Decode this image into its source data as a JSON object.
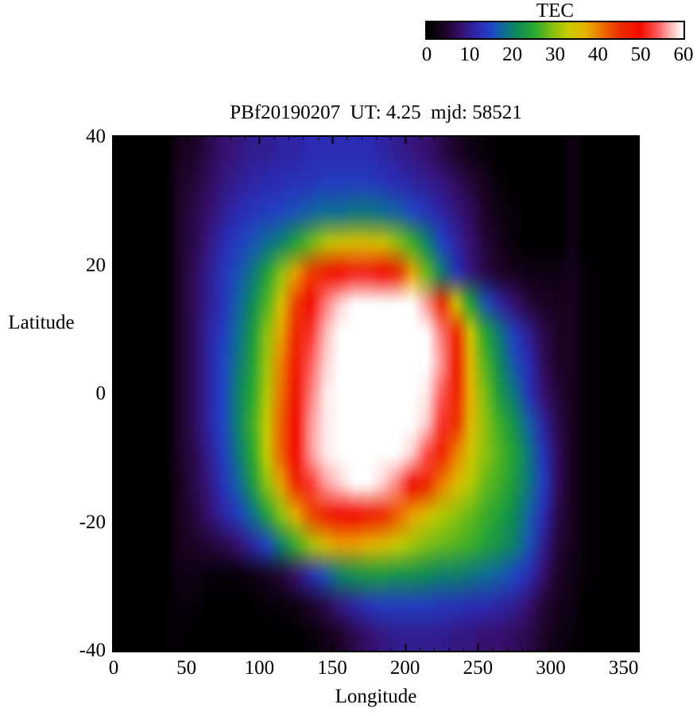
{
  "chart_data": {
    "type": "heatmap",
    "title": "PBf20190207  UT: 4.25  mjd: 58521",
    "xlabel": "Longitude",
    "ylabel": "Latitude",
    "colorbar_label": "TEC",
    "vmin": 0,
    "vmax": 60,
    "xlim": [
      0,
      360
    ],
    "ylim": [
      -40,
      40
    ],
    "xticks": [
      0,
      50,
      100,
      150,
      200,
      250,
      300,
      350
    ],
    "yticks": [
      40,
      20,
      0,
      -20,
      -40
    ],
    "colorbar_ticks": [
      0,
      10,
      20,
      30,
      40,
      50,
      60
    ],
    "lons": [
      0,
      10,
      20,
      30,
      40,
      50,
      60,
      70,
      80,
      90,
      100,
      110,
      120,
      130,
      140,
      150,
      160,
      170,
      180,
      190,
      200,
      210,
      220,
      230,
      240,
      250,
      260,
      270,
      280,
      290,
      300,
      310,
      320,
      330,
      340,
      350
    ],
    "lats": [
      40,
      35,
      30,
      25,
      20,
      15,
      10,
      5,
      0,
      -5,
      -10,
      -15,
      -20,
      -25,
      -30,
      -35,
      -40
    ],
    "values": [
      [
        0,
        0,
        0,
        0,
        3,
        4,
        6,
        8,
        9,
        10,
        10,
        11,
        11,
        12,
        12,
        12,
        12,
        12,
        11,
        10,
        9,
        8,
        6,
        4,
        2,
        1,
        0,
        0,
        0,
        0,
        0,
        2,
        0,
        0,
        0,
        0
      ],
      [
        0,
        0,
        0,
        0,
        4,
        5,
        7,
        9,
        10,
        11,
        12,
        12,
        13,
        13,
        14,
        14,
        14,
        14,
        13,
        12,
        11,
        10,
        9,
        7,
        5,
        3,
        1,
        0,
        0,
        0,
        0,
        2,
        0,
        0,
        0,
        0
      ],
      [
        0,
        0,
        0,
        0,
        4,
        6,
        8,
        10,
        12,
        13,
        14,
        15,
        16,
        17,
        18,
        18,
        19,
        19,
        18,
        17,
        15,
        13,
        11,
        9,
        7,
        4,
        2,
        1,
        0,
        0,
        0,
        2,
        0,
        0,
        0,
        0
      ],
      [
        0,
        0,
        0,
        0,
        4,
        6,
        9,
        12,
        14,
        16,
        18,
        20,
        24,
        28,
        32,
        34,
        35,
        35,
        34,
        30,
        26,
        20,
        15,
        11,
        8,
        5,
        3,
        1,
        0,
        0,
        0,
        2,
        0,
        0,
        0,
        0
      ],
      [
        0,
        0,
        0,
        0,
        4,
        7,
        10,
        13,
        16,
        19,
        24,
        30,
        38,
        44,
        48,
        50,
        51,
        51,
        50,
        46,
        38,
        28,
        20,
        13,
        9,
        6,
        4,
        3,
        2,
        2,
        2,
        3,
        1,
        0,
        0,
        0
      ],
      [
        0,
        0,
        0,
        0,
        4,
        7,
        10,
        13,
        17,
        21,
        27,
        35,
        44,
        50,
        55,
        58,
        60,
        60,
        60,
        60,
        60,
        56,
        46,
        34,
        24,
        16,
        11,
        8,
        5,
        4,
        3,
        3,
        1,
        0,
        0,
        0
      ],
      [
        0,
        0,
        0,
        0,
        4,
        7,
        11,
        14,
        18,
        23,
        30,
        38,
        46,
        52,
        57,
        60,
        60,
        60,
        60,
        60,
        60,
        60,
        55,
        46,
        34,
        25,
        19,
        14,
        10,
        6,
        4,
        3,
        1,
        0,
        0,
        0
      ],
      [
        0,
        0,
        0,
        0,
        4,
        7,
        11,
        15,
        19,
        24,
        31,
        40,
        48,
        54,
        58,
        60,
        60,
        60,
        60,
        60,
        60,
        60,
        56,
        48,
        36,
        27,
        21,
        16,
        12,
        7,
        4,
        3,
        1,
        0,
        0,
        0
      ],
      [
        0,
        0,
        0,
        0,
        4,
        7,
        11,
        15,
        20,
        25,
        32,
        41,
        49,
        55,
        59,
        60,
        60,
        60,
        60,
        60,
        60,
        59,
        54,
        47,
        37,
        29,
        23,
        19,
        13,
        8,
        5,
        3,
        1,
        0,
        0,
        0
      ],
      [
        0,
        0,
        0,
        0,
        4,
        7,
        11,
        15,
        20,
        26,
        33,
        42,
        50,
        56,
        59,
        60,
        60,
        60,
        60,
        60,
        60,
        58,
        52,
        45,
        36,
        30,
        26,
        22,
        17,
        11,
        6,
        3,
        1,
        0,
        0,
        0
      ],
      [
        0,
        0,
        0,
        0,
        4,
        6,
        10,
        14,
        19,
        25,
        33,
        42,
        50,
        56,
        59,
        60,
        60,
        60,
        60,
        60,
        58,
        53,
        47,
        40,
        34,
        30,
        27,
        24,
        19,
        13,
        7,
        3,
        1,
        0,
        0,
        0
      ],
      [
        0,
        0,
        0,
        0,
        3,
        6,
        9,
        13,
        17,
        23,
        30,
        38,
        46,
        52,
        56,
        58,
        60,
        60,
        58,
        55,
        50,
        46,
        40,
        36,
        32,
        28,
        26,
        23,
        19,
        14,
        7,
        3,
        1,
        0,
        0,
        0
      ],
      [
        0,
        0,
        0,
        0,
        3,
        5,
        8,
        11,
        14,
        18,
        24,
        30,
        37,
        43,
        47,
        50,
        50,
        48,
        46,
        42,
        38,
        35,
        32,
        30,
        28,
        26,
        24,
        21,
        17,
        12,
        6,
        3,
        1,
        0,
        0,
        0
      ],
      [
        0,
        0,
        0,
        0,
        3,
        4,
        5,
        6,
        8,
        11,
        15,
        20,
        26,
        31,
        35,
        38,
        38,
        37,
        35,
        33,
        31,
        29,
        28,
        27,
        26,
        24,
        22,
        20,
        16,
        10,
        5,
        3,
        1,
        0,
        0,
        0
      ],
      [
        0,
        0,
        0,
        0,
        2,
        2,
        1,
        1,
        1,
        2,
        3,
        5,
        8,
        12,
        16,
        20,
        22,
        23,
        23,
        22,
        22,
        21,
        20,
        20,
        19,
        18,
        17,
        15,
        12,
        8,
        4,
        2,
        1,
        0,
        0,
        0
      ],
      [
        0,
        0,
        0,
        0,
        1,
        1,
        0,
        0,
        0,
        0,
        1,
        1,
        2,
        4,
        6,
        9,
        11,
        13,
        14,
        14,
        14,
        14,
        13,
        13,
        12,
        12,
        11,
        10,
        8,
        5,
        3,
        2,
        0,
        0,
        0,
        0
      ],
      [
        0,
        0,
        0,
        0,
        1,
        0,
        0,
        0,
        0,
        0,
        0,
        0,
        0,
        1,
        2,
        4,
        6,
        8,
        9,
        10,
        10,
        10,
        10,
        9,
        9,
        8,
        8,
        7,
        6,
        4,
        2,
        1,
        0,
        0,
        0,
        0
      ]
    ],
    "colormap": [
      {
        "value": 0,
        "color": "#000000"
      },
      {
        "value": 4,
        "color": "#1d0427"
      },
      {
        "value": 8,
        "color": "#38106e"
      },
      {
        "value": 12,
        "color": "#2c2bb4"
      },
      {
        "value": 15,
        "color": "#2046c8"
      },
      {
        "value": 18,
        "color": "#0e6e96"
      },
      {
        "value": 21,
        "color": "#0d8a5a"
      },
      {
        "value": 25,
        "color": "#28a830"
      },
      {
        "value": 29,
        "color": "#7cbe14"
      },
      {
        "value": 33,
        "color": "#c8cc00"
      },
      {
        "value": 37,
        "color": "#e8b400"
      },
      {
        "value": 41,
        "color": "#ee7000"
      },
      {
        "value": 45,
        "color": "#ee3000"
      },
      {
        "value": 50,
        "color": "#f20a00"
      },
      {
        "value": 54,
        "color": "#ff5a5a"
      },
      {
        "value": 57,
        "color": "#ffb4b4"
      },
      {
        "value": 60,
        "color": "#ffffff"
      }
    ]
  }
}
